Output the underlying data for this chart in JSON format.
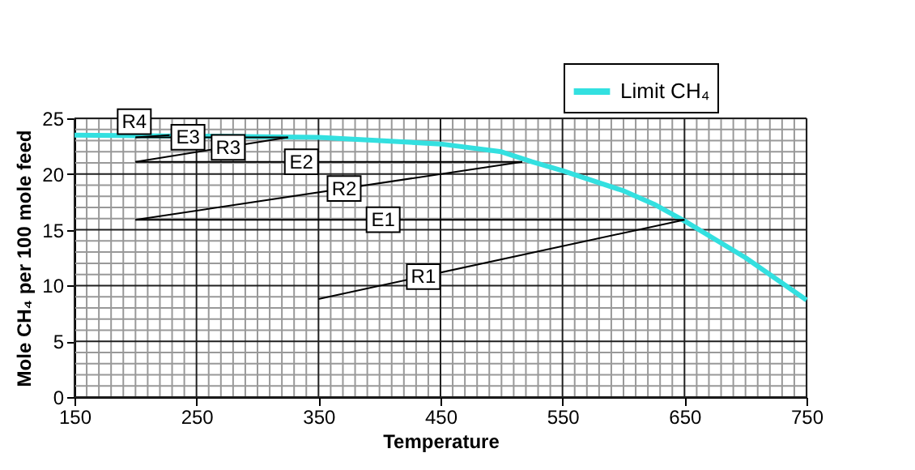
{
  "chart_data": {
    "type": "line",
    "xlabel": "Temperature",
    "ylabel": "Mole CH₄ per 100 mole feed",
    "xlim": [
      150,
      750
    ],
    "xticks": [
      150,
      250,
      350,
      450,
      550,
      650,
      750
    ],
    "ylim": [
      0,
      25
    ],
    "yticks": [
      0,
      5,
      10,
      15,
      20,
      25
    ],
    "grid": true,
    "legend": "top right",
    "marker": "none",
    "line_style": "solid",
    "series": [
      {
        "name": "Limit CH₄",
        "color": "#33e0e0",
        "x": [
          150,
          350,
          400,
          450,
          500,
          525,
          550,
          600,
          625,
          650,
          700,
          750
        ],
        "values": [
          23.5,
          23.3,
          23.0,
          22.7,
          22.0,
          21.1,
          20.3,
          18.5,
          17.3,
          15.8,
          12.5,
          8.7
        ]
      },
      {
        "color": "#000000",
        "x": [
          350,
          650
        ],
        "values": [
          8.8,
          15.9
        ]
      },
      {
        "color": "#000000",
        "x": [
          200,
          650
        ],
        "values": [
          15.9,
          15.9
        ]
      },
      {
        "color": "#000000",
        "x": [
          200,
          517
        ],
        "values": [
          15.9,
          21.1
        ]
      },
      {
        "color": "#000000",
        "x": [
          200,
          517
        ],
        "values": [
          21.1,
          21.1
        ]
      },
      {
        "color": "#000000",
        "x": [
          200,
          325
        ],
        "values": [
          21.1,
          23.3
        ]
      },
      {
        "color": "#000000",
        "x": [
          200,
          325
        ],
        "values": [
          23.3,
          23.3
        ]
      },
      {
        "color": "#000000",
        "x": [
          200,
          228
        ],
        "values": [
          23.3,
          23.5
        ]
      }
    ],
    "annotations": [
      {
        "text": "R4",
        "x": 199,
        "y": 24.7
      },
      {
        "text": "E3",
        "x": 243,
        "y": 23.3
      },
      {
        "text": "R3",
        "x": 276,
        "y": 22.4
      },
      {
        "text": "E2",
        "x": 336,
        "y": 21.1
      },
      {
        "text": "R2",
        "x": 371,
        "y": 18.7
      },
      {
        "text": "E1",
        "x": 403,
        "y": 15.9
      },
      {
        "text": "R1",
        "x": 436,
        "y": 10.8
      }
    ]
  }
}
